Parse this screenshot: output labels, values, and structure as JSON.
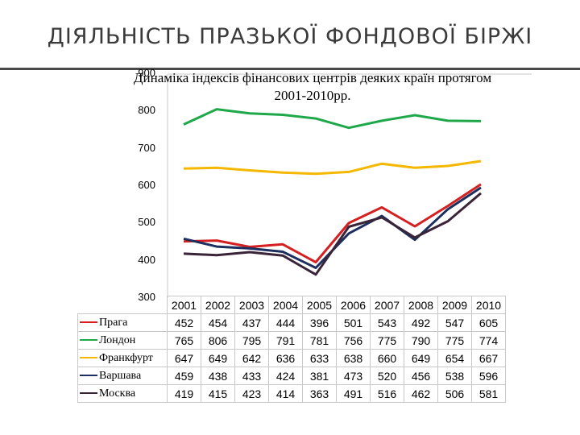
{
  "slide": {
    "title": "ДІЯЛЬНІСТЬ ПРАЗЬКОЇ ФОНДОВОЇ БІРЖІ"
  },
  "chart_data": {
    "type": "line",
    "title": "Динаміка індексів фінансових центрів деяких країн протягом 2001-2010рр.",
    "ylim": [
      300,
      900
    ],
    "yticks": [
      300,
      400,
      500,
      600,
      700,
      800,
      900
    ],
    "grid": false,
    "legend": "table-bottom",
    "categories": [
      "2001",
      "2002",
      "2003",
      "2004",
      "2005",
      "2006",
      "2007",
      "2008",
      "2009",
      "2010"
    ],
    "series": [
      {
        "name": "Прага",
        "color": "#d42020",
        "values": [
          452,
          454,
          437,
          444,
          396,
          501,
          543,
          492,
          547,
          605
        ]
      },
      {
        "name": "Лондон",
        "color": "#1fa84a",
        "values": [
          765,
          806,
          795,
          791,
          781,
          756,
          775,
          790,
          775,
          774
        ]
      },
      {
        "name": "Франкфурт",
        "color": "#f5b800",
        "values": [
          647,
          649,
          642,
          636,
          633,
          638,
          660,
          649,
          654,
          667
        ]
      },
      {
        "name": "Варшава",
        "color": "#1c2f5e",
        "values": [
          459,
          438,
          433,
          424,
          381,
          473,
          520,
          456,
          538,
          596
        ]
      },
      {
        "name": "Москва",
        "color": "#3a2438",
        "values": [
          419,
          415,
          423,
          414,
          363,
          491,
          516,
          462,
          506,
          581
        ]
      }
    ]
  }
}
